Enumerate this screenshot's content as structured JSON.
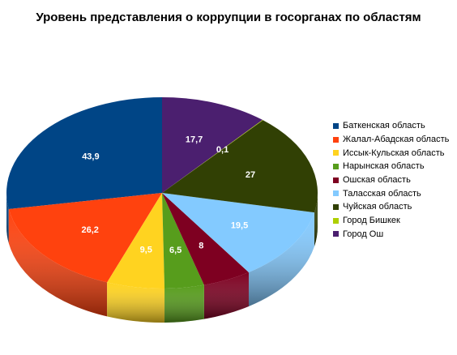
{
  "chart_data": {
    "type": "pie",
    "title": "Уровень представления о коррупции в госорганах по областям",
    "categories": [
      "Баткенская область",
      "Жалал-Абадская область",
      "Иссык-Кульская область",
      "Нарынская область",
      "Ошская область",
      "Таласская область",
      "Чуйская область",
      "Город Бишкек",
      "Город Ош"
    ],
    "values": [
      43.9,
      26.2,
      9.5,
      6.5,
      8,
      19.5,
      27,
      0.1,
      17.7
    ],
    "value_labels": [
      "43,9",
      "26,2",
      "9,5",
      "6,5",
      "8",
      "19,5",
      "27",
      "0,1",
      "17,7"
    ],
    "colors": [
      "#004586",
      "#ff420e",
      "#ffd320",
      "#579d1c",
      "#7e0021",
      "#83caff",
      "#314004",
      "#aecf00",
      "#4b1f6f"
    ],
    "legend_position": "right",
    "style": "3d"
  }
}
